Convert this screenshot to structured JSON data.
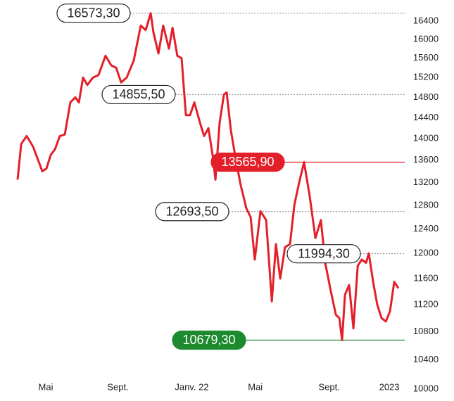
{
  "chart_data": {
    "type": "line",
    "log_y": true,
    "xlim": [
      -1.64,
      20.53
    ],
    "ylim": [
      10000,
      16600
    ],
    "xticks": [
      {
        "value": 0,
        "label": "Mai"
      },
      {
        "value": 4.2,
        "label": "Sept."
      },
      {
        "value": 8.5,
        "label": "Janv. 22"
      },
      {
        "value": 12.2,
        "label": "Mai"
      },
      {
        "value": 16.5,
        "label": "Sept."
      },
      {
        "value": 20,
        "label": "2023"
      }
    ],
    "yticks": [
      10000,
      10400,
      10800,
      11200,
      11600,
      12000,
      12400,
      12800,
      13200,
      13600,
      14000,
      14400,
      14800,
      15200,
      15600,
      16000,
      16400
    ],
    "series": [
      {
        "color": "#e3202a",
        "x": [
          -1.64,
          -1.43,
          -1.11,
          -0.74,
          -0.2,
          0.04,
          0.29,
          0.53,
          0.82,
          1.11,
          1.43,
          1.72,
          1.93,
          2.17,
          2.42,
          2.75,
          3.07,
          3.48,
          3.81,
          4.1,
          4.39,
          4.71,
          5.12,
          5.53,
          5.82,
          6.11,
          6.27,
          6.56,
          6.84,
          7.17,
          7.38,
          7.66,
          7.91,
          8.16,
          8.4,
          8.65,
          8.98,
          9.22,
          9.47,
          9.71,
          9.88,
          10.12,
          10.37,
          10.53,
          10.78,
          11.07,
          11.35,
          11.68,
          11.93,
          12.17,
          12.5,
          12.83,
          13.16,
          13.4,
          13.65,
          13.93,
          14.22,
          14.47,
          14.75,
          15.04,
          15.37,
          15.7,
          16.02,
          16.27,
          16.6,
          16.89,
          17.09,
          17.25,
          17.42,
          17.66,
          17.91,
          18.16,
          18.4,
          18.65,
          18.81,
          19.06,
          19.3,
          19.55,
          19.8,
          20.04,
          20.29,
          20.53
        ],
        "values": [
          13250,
          13900,
          14050,
          13850,
          13400,
          13450,
          13700,
          13800,
          14050,
          14080,
          14700,
          14800,
          14700,
          15200,
          15050,
          15200,
          15250,
          15650,
          15450,
          15400,
          15100,
          15200,
          15550,
          16300,
          16200,
          16573.3,
          16150,
          15700,
          16300,
          15800,
          16250,
          15650,
          15600,
          14450,
          14450,
          14700,
          14300,
          14050,
          14200,
          13700,
          13250,
          14300,
          14855.5,
          14900,
          14150,
          13600,
          13150,
          12750,
          12600,
          11900,
          12700,
          12550,
          11250,
          12150,
          11600,
          12100,
          12150,
          12800,
          13200,
          13565.9,
          12950,
          12250,
          12550,
          11850,
          11400,
          11050,
          11000,
          10679.3,
          11350,
          11500,
          10850,
          11800,
          11900,
          11850,
          12000,
          11550,
          11200,
          11000,
          10950,
          11100,
          11550,
          11450
        ]
      }
    ],
    "annotations": [
      {
        "value": 16573.3,
        "label": "16573,30",
        "style": "outline"
      },
      {
        "value": 14855.5,
        "label": "14855,50",
        "style": "outline"
      },
      {
        "value": 13565.9,
        "label": "13565,90",
        "style": "red"
      },
      {
        "value": 12693.5,
        "label": "12693,50",
        "style": "outline"
      },
      {
        "value": 11994.3,
        "label": "11994,30",
        "style": "outline"
      },
      {
        "value": 10679.3,
        "label": "10679,30",
        "style": "green"
      }
    ]
  }
}
